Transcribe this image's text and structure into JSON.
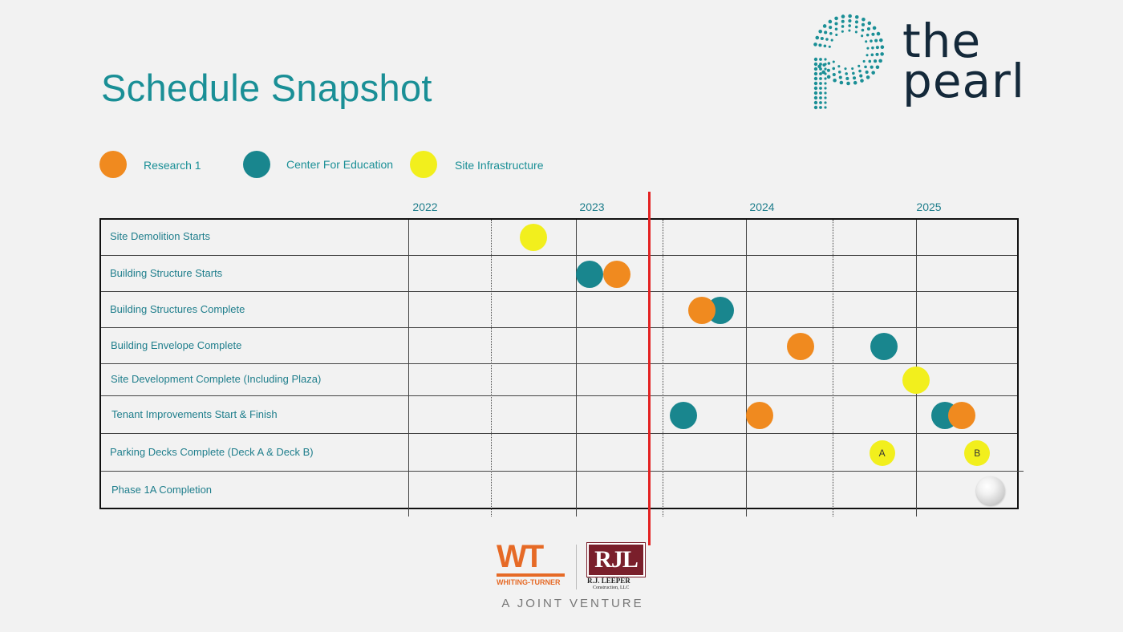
{
  "title": "Schedule Snapshot",
  "brand": {
    "line1": "the",
    "line2": "pearl",
    "color": "#14293a",
    "dot_color": "#1a8f96"
  },
  "legend": [
    {
      "key": "research",
      "label": "Research 1",
      "color": "#f08a1f"
    },
    {
      "key": "education",
      "label": "Center For Education",
      "color": "#19868e"
    },
    {
      "key": "site",
      "label": "Site Infrastructure",
      "color": "#f2ef1d"
    }
  ],
  "years": [
    "2022",
    "2023",
    "2024",
    "2025"
  ],
  "today_marker_color": "#e32222",
  "rows": [
    {
      "label": "Site Demolition Starts"
    },
    {
      "label": "Building Structure Starts"
    },
    {
      "label": "Building Structures Complete"
    },
    {
      "label": "Building Envelope Complete"
    },
    {
      "label": "Site Development Complete (Including Plaza)"
    },
    {
      "label": "Tenant Improvements Start & Finish"
    },
    {
      "label": "Parking Decks Complete (Deck A & Deck B)"
    },
    {
      "label": "Phase 1A Completion"
    }
  ],
  "milestones": [
    {
      "row": 0,
      "t": 2022.75,
      "kind": "site"
    },
    {
      "row": 1,
      "t": 2023.08,
      "kind": "education"
    },
    {
      "row": 1,
      "t": 2023.24,
      "kind": "research"
    },
    {
      "row": 2,
      "t": 2023.85,
      "kind": "education"
    },
    {
      "row": 2,
      "t": 2023.74,
      "kind": "research"
    },
    {
      "row": 3,
      "t": 2024.32,
      "kind": "research"
    },
    {
      "row": 3,
      "t": 2024.81,
      "kind": "education"
    },
    {
      "row": 4,
      "t": 2025.0,
      "kind": "site"
    },
    {
      "row": 5,
      "t": 2023.63,
      "kind": "education"
    },
    {
      "row": 5,
      "t": 2024.08,
      "kind": "research"
    },
    {
      "row": 5,
      "t": 2025.17,
      "kind": "education"
    },
    {
      "row": 5,
      "t": 2025.27,
      "kind": "research"
    },
    {
      "row": 6,
      "t": 2024.8,
      "kind": "site",
      "label": "A"
    },
    {
      "row": 6,
      "t": 2025.36,
      "kind": "site",
      "label": "B"
    },
    {
      "row": 7,
      "t": 2025.44,
      "kind": "pearl"
    }
  ],
  "footer": {
    "wt_mark": "WT",
    "wt_name": "WHITING-TURNER",
    "rjl_mark": "RJL",
    "rjl_name": "R.J. LEEPER",
    "rjl_sub": "Construction, LLC",
    "tagline": "A JOINT VENTURE"
  }
}
